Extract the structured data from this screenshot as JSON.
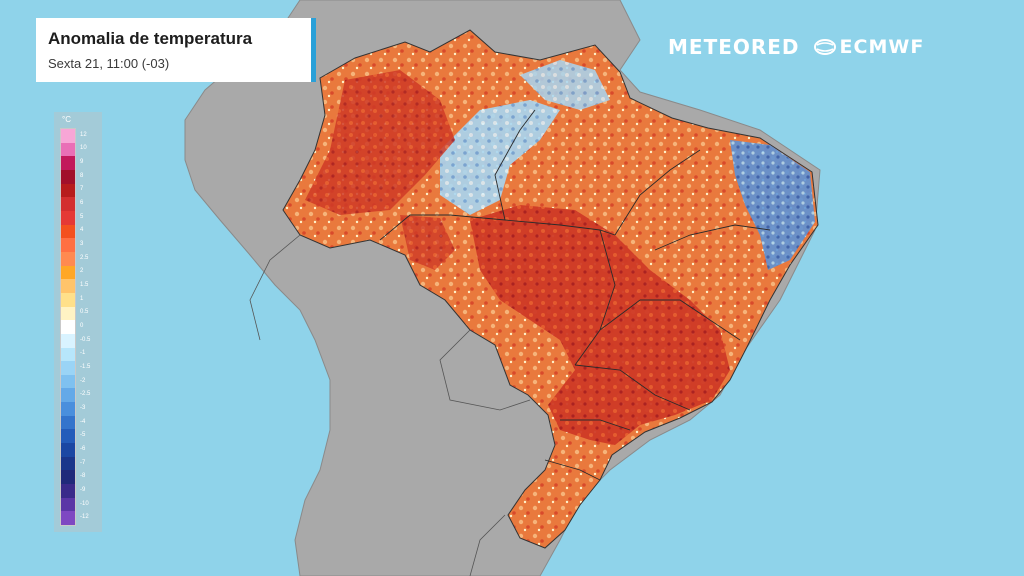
{
  "title": "Anomalia de temperatura",
  "subtitle": "Sexta 21, 11:00 (-03)",
  "brands": {
    "meteored": "METEORED",
    "ecmwf": "ECMWF"
  },
  "legend": {
    "unit": "°C",
    "ticks": [
      "12",
      "10",
      "9",
      "8",
      "7",
      "6",
      "5",
      "4",
      "3",
      "2.5",
      "2",
      "1.5",
      "1",
      "0.5",
      "0",
      "-0.5",
      "-1",
      "-1.5",
      "-2",
      "-2.5",
      "-3",
      "-4",
      "-5",
      "-6",
      "-7",
      "-8",
      "-9",
      "-10",
      "-12"
    ],
    "colors": [
      "#f7a6d6",
      "#e96fb6",
      "#c2185b",
      "#a1102a",
      "#b71c1c",
      "#d32f2f",
      "#e53935",
      "#f4511e",
      "#ff7043",
      "#ff8a50",
      "#ffa726",
      "#ffc46b",
      "#ffe08a",
      "#fff3c4",
      "#ffffff",
      "#d9f3ff",
      "#b7e6fb",
      "#9ad4f6",
      "#7fc1f0",
      "#64a9e8",
      "#4a8fdd",
      "#3474cc",
      "#245cba",
      "#1b47a3",
      "#1a368b",
      "#20297a",
      "#3a2a8a",
      "#5b36a6",
      "#7e48c2"
    ]
  },
  "colors": {
    "ocean": "#8fd3ea",
    "land_other": "#a7a7a7",
    "hot": "#e25b2a",
    "very_hot": "#c2302a",
    "warm": "#f4a96b",
    "cool": "#a9d8f2",
    "cold": "#4f86cc",
    "accent": "#2aa0d8"
  }
}
